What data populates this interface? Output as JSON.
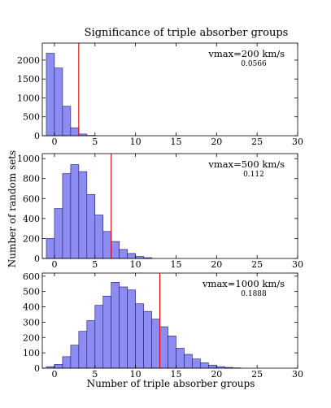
{
  "figure": {
    "title": "Significance of triple absorber groups",
    "ylabel": "Number of random sets",
    "xlabel": "Number of triple absorber groups"
  },
  "colors": {
    "bar_fill": "#8c8cf2",
    "bar_edge": "#1a1a66",
    "marker_line": "#e00000"
  },
  "chart_data": [
    {
      "type": "bar",
      "annotation": "vmax=200 km/s",
      "annotation_value": "0.0566",
      "bin_width": 1,
      "bin_starts": [
        -1,
        0,
        1,
        2,
        3,
        4
      ],
      "values": [
        2180,
        1790,
        780,
        210,
        45,
        8
      ],
      "marker_x": 3,
      "xlim": [
        -1.5,
        30
      ],
      "ylim": [
        0,
        2450
      ],
      "xticks": [
        0,
        5,
        10,
        15,
        20,
        25,
        30
      ],
      "yticks": [
        0,
        500,
        1000,
        1500,
        2000
      ]
    },
    {
      "type": "bar",
      "annotation": "vmax=500 km/s",
      "annotation_value": "0.112",
      "bin_width": 1,
      "bin_starts": [
        -1,
        0,
        1,
        2,
        3,
        4,
        5,
        6,
        7,
        8,
        9,
        10,
        11
      ],
      "values": [
        200,
        500,
        850,
        940,
        870,
        640,
        435,
        270,
        170,
        90,
        50,
        20,
        8
      ],
      "marker_x": 7,
      "xlim": [
        -1.5,
        30
      ],
      "ylim": [
        0,
        1050
      ],
      "xticks": [
        0,
        5,
        10,
        15,
        20,
        25,
        30
      ],
      "yticks": [
        0,
        200,
        400,
        600,
        800,
        1000
      ]
    },
    {
      "type": "bar",
      "annotation": "vmax=1000 km/s",
      "annotation_value": "0.1888",
      "bin_width": 1,
      "bin_starts": [
        -1,
        0,
        1,
        2,
        3,
        4,
        5,
        6,
        7,
        8,
        9,
        10,
        11,
        12,
        13,
        14,
        15,
        16,
        17,
        18,
        19,
        20,
        21,
        22
      ],
      "values": [
        10,
        25,
        75,
        150,
        240,
        310,
        410,
        470,
        560,
        530,
        510,
        420,
        370,
        320,
        270,
        210,
        130,
        90,
        60,
        35,
        20,
        10,
        5,
        2
      ],
      "marker_x": 13,
      "xlim": [
        -1.5,
        30
      ],
      "ylim": [
        0,
        620
      ],
      "xticks": [
        0,
        5,
        10,
        15,
        20,
        25,
        30
      ],
      "yticks": [
        0,
        100,
        200,
        300,
        400,
        500,
        600
      ]
    }
  ]
}
